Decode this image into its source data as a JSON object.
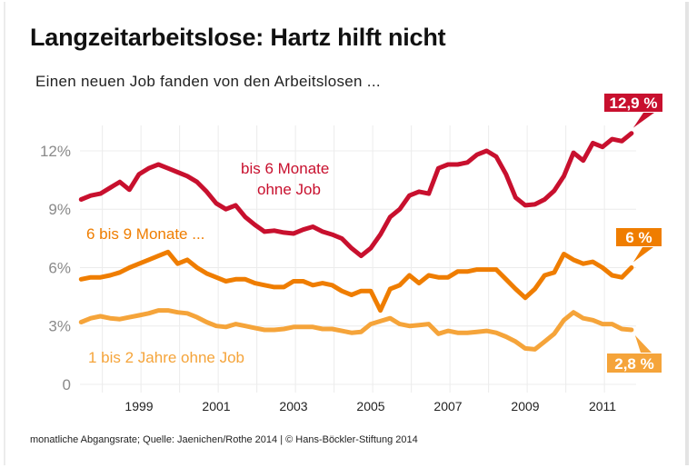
{
  "title": "Langzeitarbeitslose: Hartz hilft nicht",
  "subtitle": "Einen neuen Job fanden von den Arbeitslosen ...",
  "footnote": "monatliche Abgangsrate; Quelle: Jaenichen/Rothe 2014 | © Hans-Böckler-Stiftung 2014",
  "chart_data": {
    "type": "line",
    "title": "Langzeitarbeitslose: Hartz hilft nicht",
    "subtitle": "Einen neuen Job fanden von den Arbeitslosen ...",
    "xlabel": "",
    "ylabel": "",
    "ylim": [
      0,
      13
    ],
    "xlim": [
      1997.5,
      2011.75
    ],
    "grid": true,
    "y_ticks": [
      {
        "value": 0,
        "label": "0"
      },
      {
        "value": 3,
        "label": "3%"
      },
      {
        "value": 6,
        "label": "6%"
      },
      {
        "value": 9,
        "label": "9%"
      },
      {
        "value": 12,
        "label": "12%"
      }
    ],
    "x_ticks": [
      {
        "value": 1999,
        "label": "1999"
      },
      {
        "value": 2001,
        "label": "2001"
      },
      {
        "value": 2003,
        "label": "2003"
      },
      {
        "value": 2005,
        "label": "2005"
      },
      {
        "value": 2007,
        "label": "2007"
      },
      {
        "value": 2009,
        "label": "2009"
      },
      {
        "value": 2011,
        "label": "2011"
      }
    ],
    "x": [
      1997.5,
      1997.75,
      1998,
      1998.25,
      1998.5,
      1998.75,
      1999,
      1999.25,
      1999.5,
      1999.75,
      2000,
      2000.25,
      2000.5,
      2000.75,
      2001,
      2001.25,
      2001.5,
      2001.75,
      2002,
      2002.25,
      2002.5,
      2002.75,
      2003,
      2003.25,
      2003.5,
      2003.75,
      2004,
      2004.25,
      2004.5,
      2004.75,
      2005,
      2005.25,
      2005.5,
      2005.75,
      2006,
      2006.25,
      2006.5,
      2006.75,
      2007,
      2007.25,
      2007.5,
      2007.75,
      2008,
      2008.25,
      2008.5,
      2008.75,
      2009,
      2009.25,
      2009.5,
      2009.75,
      2010,
      2010.25,
      2010.5,
      2010.75,
      2011,
      2011.25,
      2011.5,
      2011.75
    ],
    "series": [
      {
        "name": "bis 6 Monate ohne Job",
        "label_lines": [
          "bis 6 Monate",
          "ohne Job"
        ],
        "color": "#c8102e",
        "end_label": "12,9 %",
        "values": [
          9.5,
          9.7,
          9.8,
          10.1,
          10.4,
          10.0,
          10.8,
          11.1,
          11.3,
          11.1,
          10.9,
          10.7,
          10.4,
          9.9,
          9.3,
          9.0,
          9.2,
          8.6,
          8.2,
          7.85,
          7.9,
          7.8,
          7.75,
          7.95,
          8.1,
          7.85,
          7.7,
          7.5,
          7.0,
          6.6,
          7.0,
          7.7,
          8.6,
          9.0,
          9.7,
          9.9,
          9.8,
          11.1,
          11.3,
          11.3,
          11.4,
          11.8,
          12.0,
          11.7,
          10.8,
          9.6,
          9.2,
          9.25,
          9.5,
          9.95,
          10.7,
          11.9,
          11.5,
          12.4,
          12.2,
          12.6,
          12.5,
          12.9
        ]
      },
      {
        "name": "6 bis 9 Monate ...",
        "label_lines": [
          "6 bis 9 Monate ..."
        ],
        "color": "#ef7d00",
        "end_label": "6 %",
        "values": [
          5.4,
          5.5,
          5.5,
          5.6,
          5.75,
          6.0,
          6.2,
          6.4,
          6.6,
          6.8,
          6.2,
          6.4,
          6.0,
          5.7,
          5.5,
          5.3,
          5.4,
          5.4,
          5.2,
          5.1,
          5.0,
          5.0,
          5.3,
          5.3,
          5.1,
          5.2,
          5.1,
          4.8,
          4.6,
          4.8,
          4.8,
          3.8,
          4.9,
          5.1,
          5.6,
          5.2,
          5.6,
          5.5,
          5.5,
          5.8,
          5.8,
          5.9,
          5.9,
          5.9,
          5.4,
          4.9,
          4.45,
          4.9,
          5.6,
          5.75,
          6.7,
          6.4,
          6.2,
          6.3,
          6.0,
          5.6,
          5.5,
          6.0
        ]
      },
      {
        "name": "1 bis 2 Jahre ohne Job",
        "label_lines": [
          "1 bis 2 Jahre ohne Job"
        ],
        "color": "#f5a43a",
        "end_label": "2,8 %",
        "values": [
          3.2,
          3.4,
          3.5,
          3.4,
          3.35,
          3.45,
          3.55,
          3.65,
          3.8,
          3.8,
          3.7,
          3.65,
          3.45,
          3.2,
          3.0,
          2.95,
          3.1,
          3.0,
          2.9,
          2.8,
          2.8,
          2.85,
          2.95,
          2.95,
          2.95,
          2.85,
          2.85,
          2.75,
          2.65,
          2.7,
          3.1,
          3.25,
          3.4,
          3.1,
          3.0,
          3.05,
          3.1,
          2.6,
          2.75,
          2.65,
          2.65,
          2.7,
          2.75,
          2.65,
          2.45,
          2.2,
          1.85,
          1.8,
          2.2,
          2.6,
          3.3,
          3.7,
          3.4,
          3.3,
          3.1,
          3.1,
          2.85,
          2.8
        ]
      }
    ]
  }
}
